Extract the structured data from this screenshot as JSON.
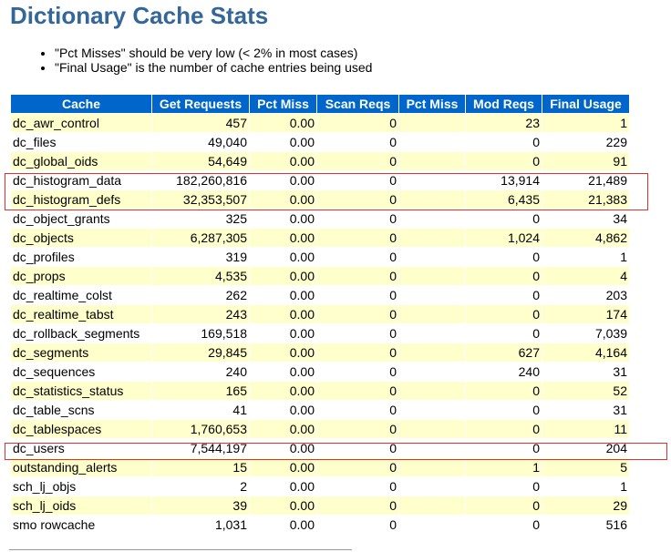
{
  "header": {
    "title": "Dictionary Cache Stats"
  },
  "notes": [
    "\"Pct Misses\" should be very low (< 2% in most cases)",
    "\"Final Usage\" is the number of cache entries being used"
  ],
  "table": {
    "columns": [
      "Cache",
      "Get Requests",
      "Pct Miss",
      "Scan Reqs",
      "Pct Miss",
      "Mod Reqs",
      "Final Usage"
    ],
    "rows": [
      {
        "cache": "dc_awr_control",
        "get_requests": "457",
        "pct_miss": "0.00",
        "scan_reqs": "0",
        "mod_reqs": "23",
        "final_usage": "1"
      },
      {
        "cache": "dc_files",
        "get_requests": "49,040",
        "pct_miss": "0.00",
        "scan_reqs": "0",
        "mod_reqs": "0",
        "final_usage": "229"
      },
      {
        "cache": "dc_global_oids",
        "get_requests": "54,649",
        "pct_miss": "0.00",
        "scan_reqs": "0",
        "mod_reqs": "0",
        "final_usage": "91"
      },
      {
        "cache": "dc_histogram_data",
        "get_requests": "182,260,816",
        "pct_miss": "0.00",
        "scan_reqs": "0",
        "mod_reqs": "13,914",
        "final_usage": "21,489"
      },
      {
        "cache": "dc_histogram_defs",
        "get_requests": "32,353,507",
        "pct_miss": "0.00",
        "scan_reqs": "0",
        "mod_reqs": "6,435",
        "final_usage": "21,383"
      },
      {
        "cache": "dc_object_grants",
        "get_requests": "325",
        "pct_miss": "0.00",
        "scan_reqs": "0",
        "mod_reqs": "0",
        "final_usage": "34"
      },
      {
        "cache": "dc_objects",
        "get_requests": "6,287,305",
        "pct_miss": "0.00",
        "scan_reqs": "0",
        "mod_reqs": "1,024",
        "final_usage": "4,862"
      },
      {
        "cache": "dc_profiles",
        "get_requests": "319",
        "pct_miss": "0.00",
        "scan_reqs": "0",
        "mod_reqs": "0",
        "final_usage": "1"
      },
      {
        "cache": "dc_props",
        "get_requests": "4,535",
        "pct_miss": "0.00",
        "scan_reqs": "0",
        "mod_reqs": "0",
        "final_usage": "4"
      },
      {
        "cache": "dc_realtime_colst",
        "get_requests": "262",
        "pct_miss": "0.00",
        "scan_reqs": "0",
        "mod_reqs": "0",
        "final_usage": "203"
      },
      {
        "cache": "dc_realtime_tabst",
        "get_requests": "243",
        "pct_miss": "0.00",
        "scan_reqs": "0",
        "mod_reqs": "0",
        "final_usage": "174"
      },
      {
        "cache": "dc_rollback_segments",
        "get_requests": "169,518",
        "pct_miss": "0.00",
        "scan_reqs": "0",
        "mod_reqs": "0",
        "final_usage": "7,039"
      },
      {
        "cache": "dc_segments",
        "get_requests": "29,845",
        "pct_miss": "0.00",
        "scan_reqs": "0",
        "mod_reqs": "627",
        "final_usage": "4,164"
      },
      {
        "cache": "dc_sequences",
        "get_requests": "240",
        "pct_miss": "0.00",
        "scan_reqs": "0",
        "mod_reqs": "240",
        "final_usage": "31"
      },
      {
        "cache": "dc_statistics_status",
        "get_requests": "165",
        "pct_miss": "0.00",
        "scan_reqs": "0",
        "mod_reqs": "0",
        "final_usage": "52"
      },
      {
        "cache": "dc_table_scns",
        "get_requests": "41",
        "pct_miss": "0.00",
        "scan_reqs": "0",
        "mod_reqs": "0",
        "final_usage": "31"
      },
      {
        "cache": "dc_tablespaces",
        "get_requests": "1,760,653",
        "pct_miss": "0.00",
        "scan_reqs": "0",
        "mod_reqs": "0",
        "final_usage": "11"
      },
      {
        "cache": "dc_users",
        "get_requests": "7,544,197",
        "pct_miss": "0.00",
        "scan_reqs": "0",
        "mod_reqs": "0",
        "final_usage": "204"
      },
      {
        "cache": "outstanding_alerts",
        "get_requests": "15",
        "pct_miss": "0.00",
        "scan_reqs": "0",
        "mod_reqs": "1",
        "final_usage": "5"
      },
      {
        "cache": "sch_lj_objs",
        "get_requests": "2",
        "pct_miss": "0.00",
        "scan_reqs": "0",
        "mod_reqs": "0",
        "final_usage": "1"
      },
      {
        "cache": "sch_lj_oids",
        "get_requests": "39",
        "pct_miss": "0.00",
        "scan_reqs": "0",
        "mod_reqs": "0",
        "final_usage": "29"
      },
      {
        "cache": "smo rowcache",
        "get_requests": "1,031",
        "pct_miss": "0.00",
        "scan_reqs": "0",
        "mod_reqs": "0",
        "final_usage": "516"
      }
    ]
  }
}
